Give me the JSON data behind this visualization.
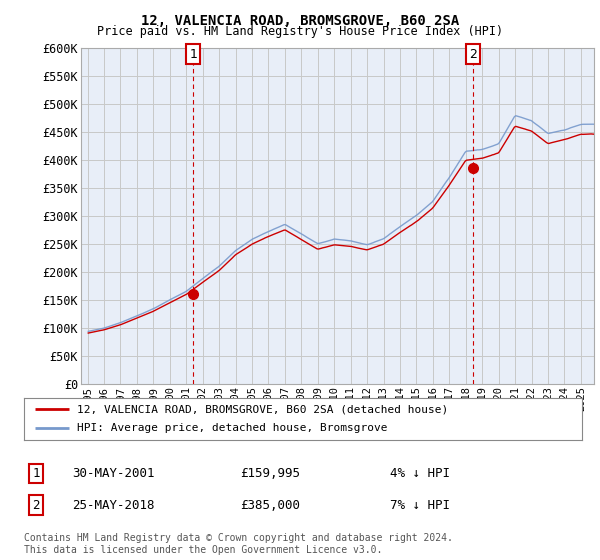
{
  "title": "12, VALENCIA ROAD, BROMSGROVE, B60 2SA",
  "subtitle": "Price paid vs. HM Land Registry's House Price Index (HPI)",
  "ylim": [
    0,
    600000
  ],
  "yticks": [
    0,
    50000,
    100000,
    150000,
    200000,
    250000,
    300000,
    350000,
    400000,
    450000,
    500000,
    550000,
    600000
  ],
  "plot_bg": "#e8eef8",
  "grid_color": "#c8c8c8",
  "hpi_color": "#7799cc",
  "price_color": "#cc0000",
  "marker_color": "#cc0000",
  "vline_color": "#cc0000",
  "legend_label_price": "12, VALENCIA ROAD, BROMSGROVE, B60 2SA (detached house)",
  "legend_label_hpi": "HPI: Average price, detached house, Bromsgrove",
  "transaction1_date": "30-MAY-2001",
  "transaction1_price": "£159,995",
  "transaction1_pct": "4% ↓ HPI",
  "transaction2_date": "25-MAY-2018",
  "transaction2_price": "£385,000",
  "transaction2_pct": "7% ↓ HPI",
  "footnote": "Contains HM Land Registry data © Crown copyright and database right 2024.\nThis data is licensed under the Open Government Licence v3.0.",
  "sale1_year": 2001.42,
  "sale1_value": 159995,
  "sale2_year": 2018.42,
  "sale2_value": 385000,
  "xlim_left": 1994.6,
  "xlim_right": 2025.8
}
